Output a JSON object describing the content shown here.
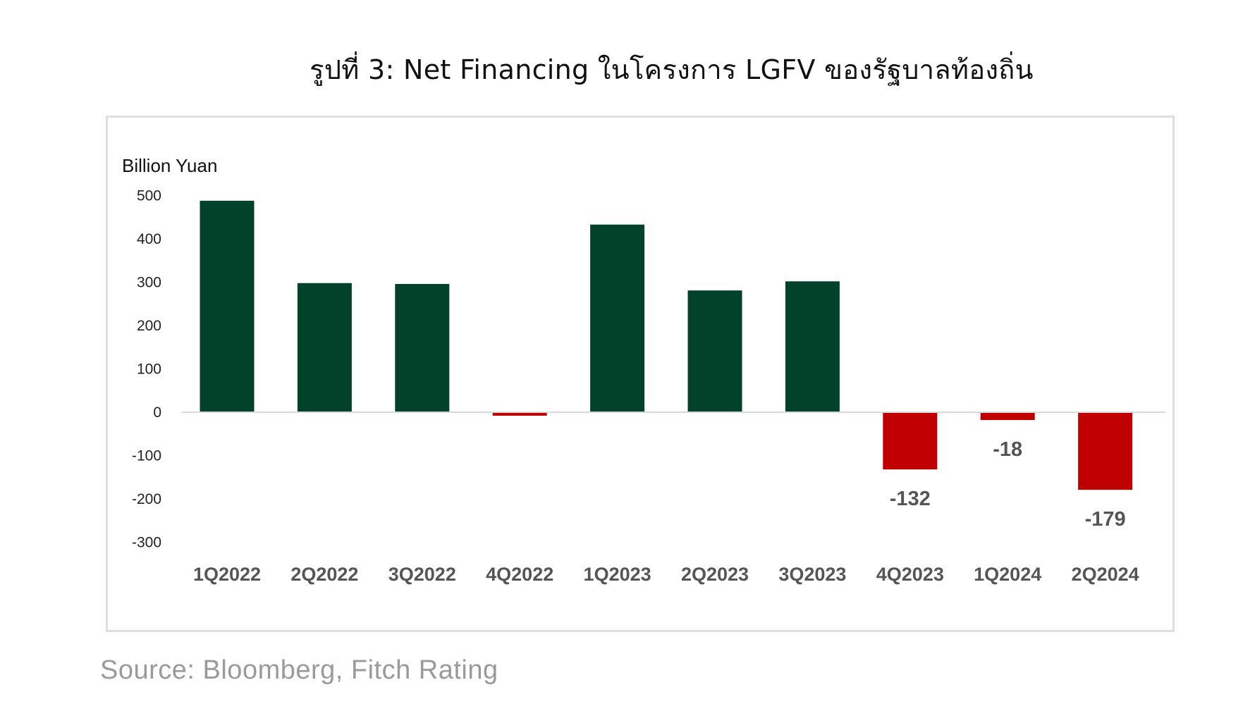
{
  "figure": {
    "title": "รูปที่ 3: Net Financing ในโครงการ LGFV ของรัฐบาลท้องถิ่น",
    "source": "Source: Bloomberg, Fitch Rating"
  },
  "chart_data": {
    "type": "bar",
    "ylabel": "Billion Yuan",
    "xlabel": "",
    "ylim": [
      -300,
      500
    ],
    "yticks": [
      500,
      400,
      300,
      200,
      100,
      0,
      -100,
      -200,
      -300
    ],
    "categories": [
      "1Q2022",
      "2Q2022",
      "3Q2022",
      "4Q2022",
      "1Q2023",
      "2Q2023",
      "3Q2023",
      "4Q2023",
      "1Q2024",
      "2Q2024"
    ],
    "values": [
      488,
      298,
      296,
      -8,
      433,
      281,
      302,
      -132,
      -18,
      -179
    ],
    "data_labels": [
      {
        "category": "4Q2023",
        "text": "-132"
      },
      {
        "category": "1Q2024",
        "text": "-18"
      },
      {
        "category": "2Q2024",
        "text": "-179"
      }
    ],
    "grid": false,
    "legend": "none",
    "colors": {
      "positive": "#03422a",
      "negative": "#c00000",
      "zero_line": "#d9d9d9"
    }
  }
}
